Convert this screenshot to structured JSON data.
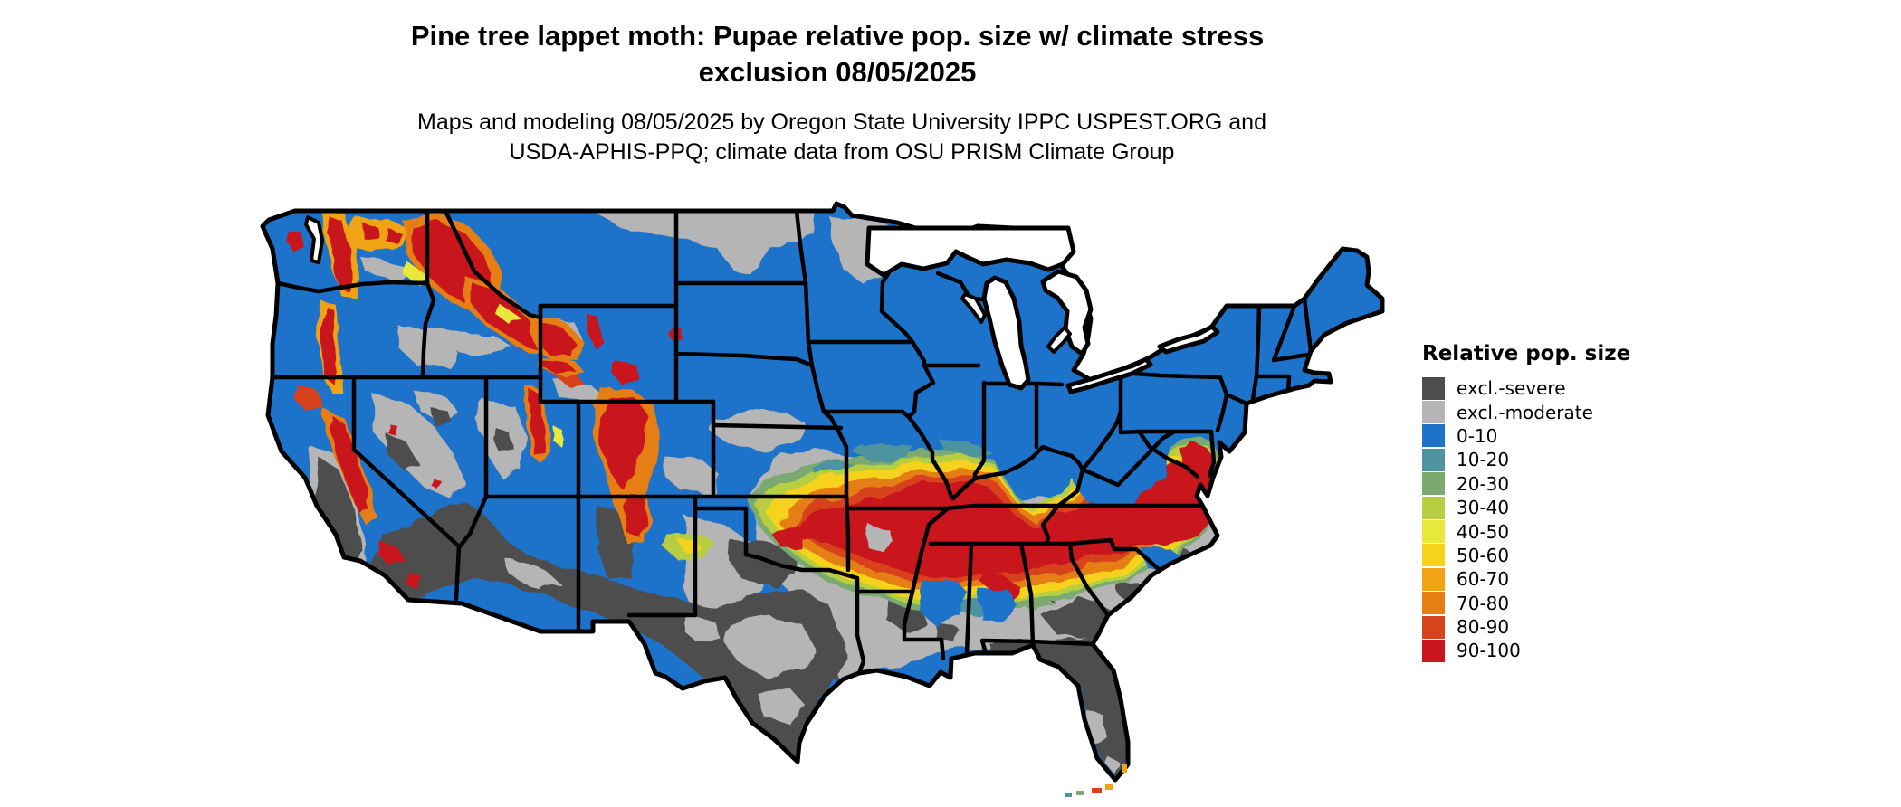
{
  "title": {
    "line1": "Pine tree lappet moth: Pupae relative pop. size w/ climate stress",
    "line2": "exclusion 08/05/2025"
  },
  "subtitle": {
    "line1": "Maps and modeling 08/05/2025 by Oregon State University IPPC USPEST.ORG and",
    "line2": "USDA-APHIS-PPQ; climate data from OSU PRISM Climate Group"
  },
  "legend": {
    "title": "Relative pop. size",
    "items": [
      {
        "label": "excl.-severe",
        "color_key": "severe"
      },
      {
        "label": "excl.-moderate",
        "color_key": "moderate"
      },
      {
        "label": "0-10",
        "color_key": "c0"
      },
      {
        "label": "10-20",
        "color_key": "c10"
      },
      {
        "label": "20-30",
        "color_key": "c20"
      },
      {
        "label": "30-40",
        "color_key": "c30"
      },
      {
        "label": "40-50",
        "color_key": "c40"
      },
      {
        "label": "50-60",
        "color_key": "c50"
      },
      {
        "label": "60-70",
        "color_key": "c60"
      },
      {
        "label": "70-80",
        "color_key": "c70"
      },
      {
        "label": "80-90",
        "color_key": "c80"
      },
      {
        "label": "90-100",
        "color_key": "c90"
      }
    ]
  },
  "map": {
    "region": "Contiguous United States",
    "background": "#ffffff",
    "dominant_class": "0-10"
  },
  "colors": {
    "severe": "#4d4d4d",
    "moderate": "#b5b5b5",
    "c0": "#1d73c9",
    "c10": "#4e93a0",
    "c20": "#7aaa70",
    "c30": "#b7cd42",
    "c40": "#e8e73b",
    "c50": "#f5d31b",
    "c60": "#f1a314",
    "c70": "#e67e12",
    "c80": "#d7431d",
    "c90": "#c9151b",
    "border": "#000000",
    "water": "#ffffff"
  }
}
